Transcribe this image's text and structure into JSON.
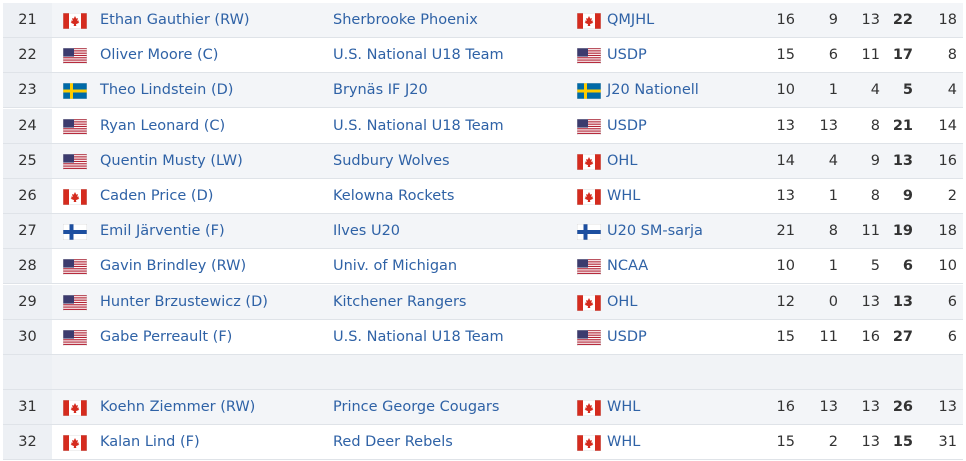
{
  "table": {
    "rows": [
      [
        21,
        "Ethan Gauthier (RW)",
        "Sherbrooke Phoenix",
        "QMJHL",
        16,
        9,
        13,
        22,
        18
      ],
      [
        22,
        "Oliver Moore (C)",
        "U.S. National U18 Team",
        "USDP",
        15,
        6,
        11,
        17,
        8
      ],
      [
        23,
        "Theo Lindstein (D)",
        "Brynäs IF J20",
        "J20 Nationell",
        10,
        1,
        4,
        5,
        4
      ],
      [
        24,
        "Ryan Leonard (C)",
        "U.S. National U18 Team",
        "USDP",
        13,
        13,
        8,
        21,
        14
      ],
      [
        25,
        "Quentin Musty (LW)",
        "Sudbury Wolves",
        "OHL",
        14,
        4,
        9,
        13,
        16
      ],
      [
        26,
        "Caden Price (D)",
        "Kelowna Rockets",
        "WHL",
        13,
        1,
        8,
        9,
        2
      ],
      [
        27,
        "Emil Järventie (F)",
        "Ilves U20",
        "U20 SM-sarja",
        21,
        8,
        11,
        19,
        18
      ],
      [
        28,
        "Gavin Brindley (RW)",
        "Univ. of Michigan",
        "NCAA",
        10,
        1,
        5,
        6,
        10
      ],
      [
        29,
        "Hunter Brzustewicz (D)",
        "Kitchener Rangers",
        "OHL",
        12,
        0,
        13,
        13,
        6
      ],
      [
        30,
        "Gabe Perreault (F)",
        "U.S. National U18 Team",
        "USDP",
        15,
        11,
        16,
        27,
        6
      ],
      [
        31,
        "Koehn Ziemmer (RW)",
        "Prince George Cougars",
        "WHL",
        16,
        13,
        13,
        26,
        13
      ],
      [
        32,
        "Kalan Lind (F)",
        "Red Deer Rebels",
        "WHL",
        15,
        2,
        13,
        15,
        31
      ]
    ]
  }
}
